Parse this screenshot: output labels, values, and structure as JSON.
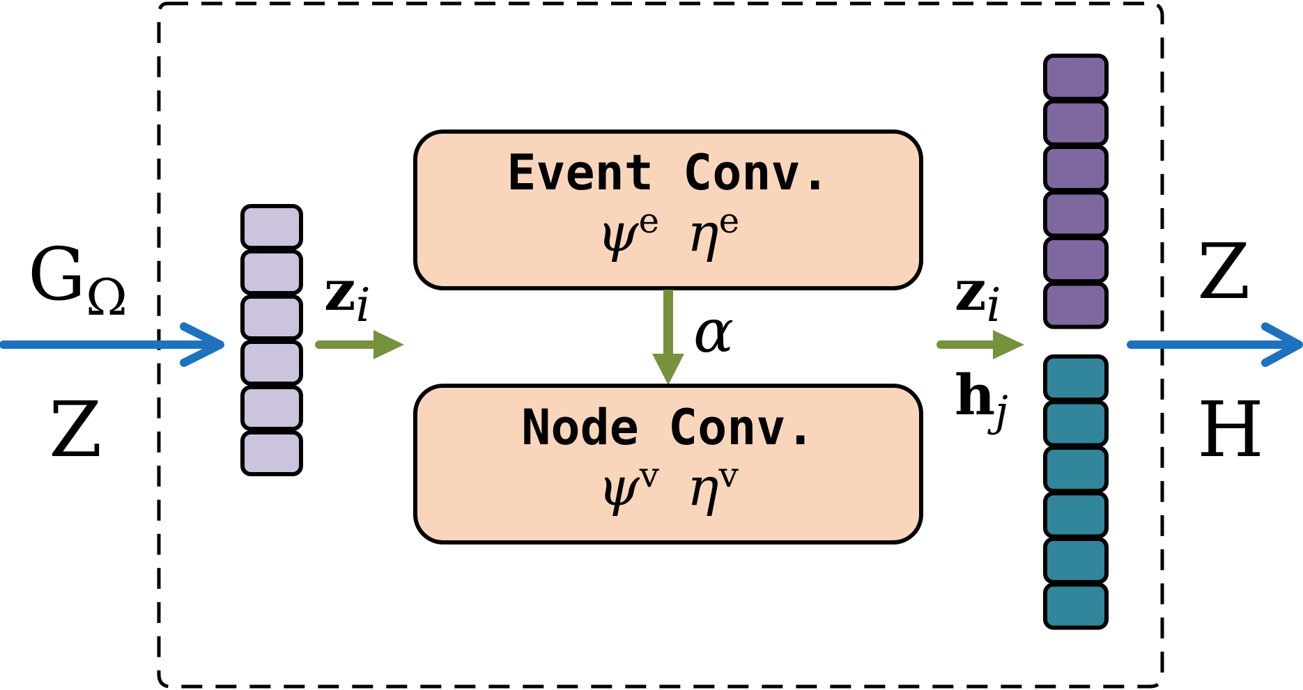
{
  "inputs": {
    "top_label_base": "G",
    "top_label_sub": "Ω",
    "bottom_label": "Z"
  },
  "left_vector": {
    "label_base": "z",
    "label_sub": "i",
    "cell_count": 6,
    "color": "#ccc3dd"
  },
  "event_conv": {
    "title": "Event Conv.",
    "param1_base": "ψ",
    "param1_sup": "e",
    "param2_base": "η",
    "param2_sup": "e"
  },
  "link_label": "α",
  "node_conv": {
    "title": "Node Conv.",
    "param1_base": "ψ",
    "param1_sup": "v",
    "param2_base": "η",
    "param2_sup": "v"
  },
  "right_vectors": {
    "top_label_base": "z",
    "top_label_sub": "i",
    "bottom_label_base": "h",
    "bottom_label_sub": "j",
    "top_cell_count": 6,
    "bottom_cell_count": 6,
    "top_color": "#7f67a0",
    "bottom_color": "#31869b"
  },
  "outputs": {
    "top_label": "Z",
    "bottom_label": "H"
  },
  "colors": {
    "flow_arrow": "#1e71bd",
    "inner_arrow": "#76923c",
    "box_fill": "#f9d6bb",
    "stroke": "#000000"
  }
}
